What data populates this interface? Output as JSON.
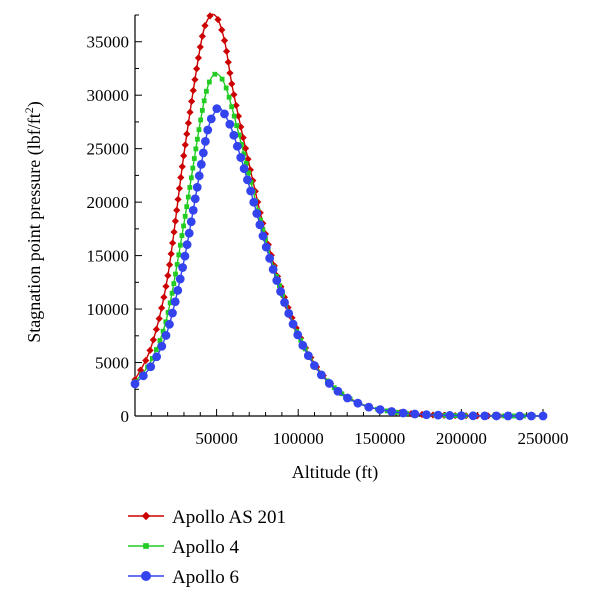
{
  "chart_data": {
    "type": "line",
    "xlabel": "Altitude (ft)",
    "ylabel": {
      "main": "Stagnation point pressure (lbf/ft",
      "sup": "2",
      "close": ")"
    },
    "xlim": [
      0,
      250000
    ],
    "ylim": [
      0,
      37500
    ],
    "xticks": [
      50000,
      100000,
      150000,
      200000,
      250000
    ],
    "xtick_labels": [
      "50000",
      "100000",
      "150000",
      "200000",
      "250000"
    ],
    "yticks": [
      0,
      5000,
      10000,
      15000,
      20000,
      25000,
      30000,
      35000
    ],
    "ytick_labels": [
      "0",
      "5000",
      "10000",
      "15000",
      "20000",
      "25000",
      "30000",
      "35000"
    ],
    "grid": false,
    "legend_position": "bottom-left, below plot",
    "series": [
      {
        "name": "Apollo AS 201",
        "color": "#cc0000",
        "marker": "diamond",
        "x": [
          0,
          10000,
          20000,
          30000,
          40000,
          45000,
          50000,
          55000,
          60000,
          70000,
          80000,
          90000,
          100000,
          110000,
          120000,
          130000,
          140000,
          150000,
          170000,
          200000,
          250000
        ],
        "y": [
          3400,
          6500,
          13000,
          24500,
          34500,
          37200,
          37300,
          35000,
          30500,
          23500,
          17000,
          11800,
          7800,
          4900,
          3000,
          1800,
          1050,
          600,
          200,
          30,
          0
        ]
      },
      {
        "name": "Apollo 4",
        "color": "#22cc22",
        "marker": "square",
        "x": [
          0,
          10000,
          20000,
          30000,
          40000,
          45000,
          50000,
          55000,
          60000,
          70000,
          80000,
          90000,
          100000,
          110000,
          120000,
          130000,
          140000,
          150000,
          170000,
          200000,
          250000
        ],
        "y": [
          3200,
          5200,
          9500,
          18000,
          27500,
          31000,
          32000,
          31000,
          28500,
          22500,
          16500,
          11500,
          7600,
          4800,
          2950,
          1750,
          1050,
          600,
          200,
          30,
          0
        ]
      },
      {
        "name": "Apollo 6",
        "color": "#3344ee",
        "marker": "circle",
        "x": [
          0,
          10000,
          20000,
          30000,
          40000,
          45000,
          50000,
          52000,
          55000,
          60000,
          70000,
          80000,
          90000,
          100000,
          110000,
          120000,
          130000,
          140000,
          150000,
          170000,
          200000,
          250000
        ],
        "y": [
          3000,
          4700,
          8000,
          14500,
          23000,
          27000,
          28700,
          28800,
          28200,
          26500,
          21500,
          16000,
          11300,
          7500,
          4700,
          2900,
          1700,
          1000,
          600,
          200,
          30,
          0
        ]
      }
    ]
  }
}
